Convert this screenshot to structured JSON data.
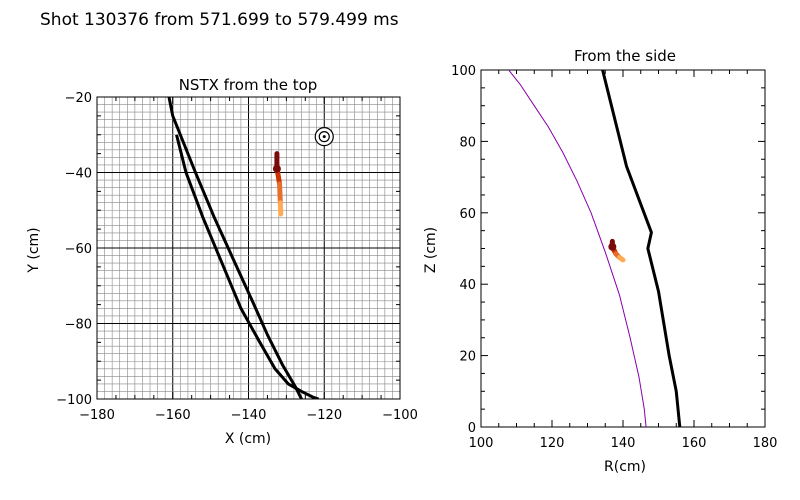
{
  "header": {
    "title": "Shot 130376 from 571.699 to 579.499 ms"
  },
  "colors": {
    "path_dark": "#7a0a0a",
    "path_mid": "#cc3300",
    "path_light": "#ffaa55",
    "separatrix": "#8800aa",
    "grid": "#888888"
  },
  "chart_data": [
    {
      "id": "top",
      "type": "line",
      "title": "NSTX from the top",
      "xlabel": "X (cm)",
      "ylabel": "Y (cm)",
      "xlim": [
        -180,
        -100
      ],
      "ylim": [
        -100,
        -20
      ],
      "xticks": [
        -180,
        -160,
        -140,
        -120,
        -100
      ],
      "yticks": [
        -100,
        -80,
        -60,
        -40,
        -20
      ],
      "xtick_labels": [
        "−180",
        "−160",
        "−140",
        "−120",
        "−100"
      ],
      "ytick_labels": [
        "−100",
        "−80",
        "−60",
        "−40",
        "−20"
      ],
      "grid": true,
      "grid_fine_step": 2,
      "series": [
        {
          "name": "wall-outer",
          "color": "#000000",
          "x": [
            -161,
            -160,
            -158,
            -154,
            -149,
            -144,
            -139,
            -135,
            -131,
            -127.5,
            -126
          ],
          "y": [
            -20,
            -25,
            -30,
            -40,
            -52,
            -63,
            -74,
            -83,
            -91,
            -97,
            -100
          ]
        },
        {
          "name": "wall-inner",
          "color": "#000000",
          "x": [
            -159,
            -156.5,
            -152,
            -147,
            -142,
            -137,
            -133,
            -129.5,
            -126,
            -123,
            -121.5
          ],
          "y": [
            -30,
            -40,
            -52,
            -64,
            -76,
            -85,
            -92,
            -96,
            -98,
            -99.5,
            -100
          ]
        }
      ],
      "markers": [
        {
          "name": "target",
          "x": -120,
          "y": -30.5
        }
      ],
      "gradient_path": {
        "x": [
          -132.5,
          -132.5,
          -132.3,
          -131.8,
          -131.6,
          -131.5
        ],
        "y": [
          -35,
          -39,
          -40,
          -43,
          -48,
          -51
        ]
      }
    },
    {
      "id": "side",
      "type": "line",
      "title": "From the side",
      "xlabel": "R(cm)",
      "ylabel": "Z (cm)",
      "xlim": [
        100,
        180
      ],
      "ylim": [
        0,
        100
      ],
      "xticks": [
        100,
        120,
        140,
        160,
        180
      ],
      "yticks": [
        0,
        20,
        40,
        60,
        80,
        100
      ],
      "xtick_labels": [
        "100",
        "120",
        "140",
        "160",
        "180"
      ],
      "ytick_labels": [
        "0",
        "20",
        "40",
        "60",
        "80",
        "100"
      ],
      "grid": false,
      "series": [
        {
          "name": "separatrix",
          "color": "#8800aa",
          "x": [
            107,
            111,
            115,
            119,
            123,
            127,
            131,
            135,
            139,
            142,
            144.5,
            146,
            146.5
          ],
          "y": [
            101,
            96,
            90,
            84,
            77,
            69,
            60,
            49,
            37,
            25,
            14,
            5,
            0
          ]
        },
        {
          "name": "wall",
          "color": "#000000",
          "x": [
            134,
            141,
            148,
            147,
            150,
            153,
            155,
            155.5,
            156
          ],
          "y": [
            101,
            73,
            54.5,
            50,
            38,
            20,
            10,
            5,
            0
          ]
        }
      ],
      "gradient_path": {
        "x": [
          137,
          137,
          137.5,
          138,
          139,
          140
        ],
        "y": [
          52,
          50.5,
          49.5,
          48.5,
          47.5,
          46.8
        ]
      }
    }
  ]
}
